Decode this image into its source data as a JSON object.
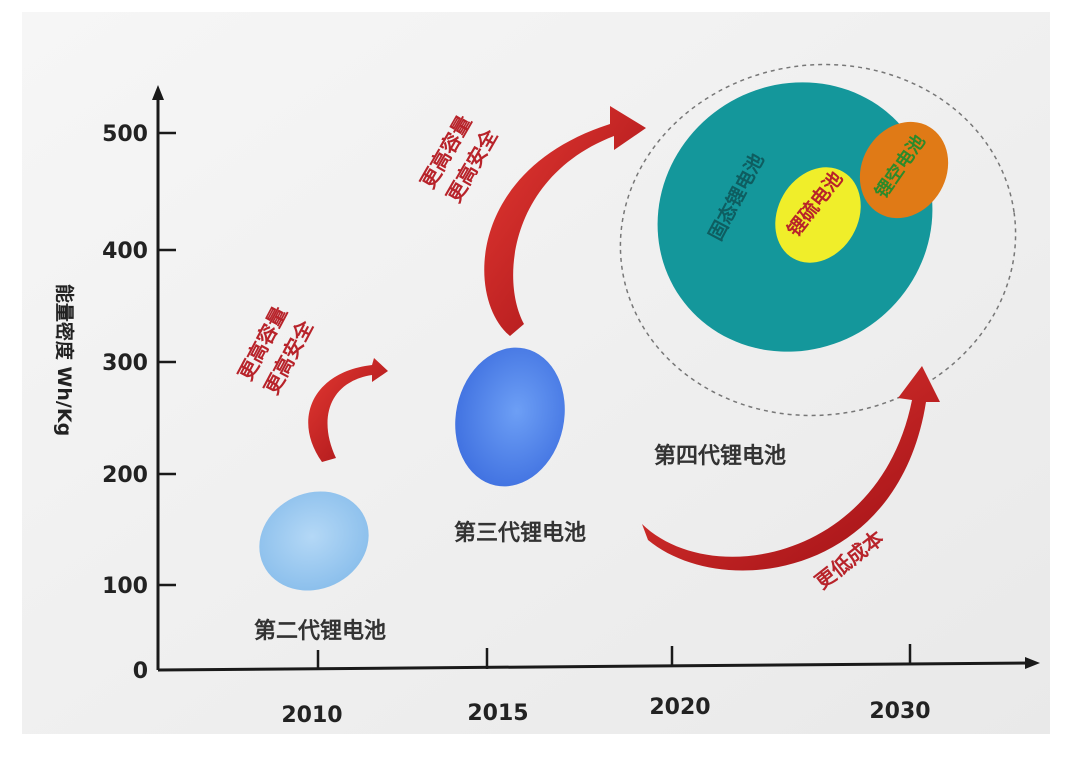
{
  "colors": {
    "background": "#f3f3f3",
    "axis": "#1a1a1a",
    "gen2": "#9ccaf2",
    "gen3": "#5b8ef0",
    "gen4": "#14979b",
    "lithium_sulfur": "#f0ee2a",
    "lithium_air": "#e07a16",
    "arrow_red": "#c8161c",
    "annotation_red": "#b8232a"
  },
  "y_axis": {
    "label": "能量密度 Wh/Kg",
    "ticks": [
      "0",
      "100",
      "200",
      "300",
      "400",
      "500"
    ]
  },
  "x_axis": {
    "ticks": [
      "2010",
      "2015",
      "2020",
      "2030"
    ]
  },
  "generations": {
    "gen2": "第二代锂电池",
    "gen3": "第三代锂电池",
    "gen4": "第四代锂电池"
  },
  "tech": {
    "solid_state": "固态锂电池",
    "lithium_sulfur": "锂硫电池",
    "lithium_air": "锂空电池"
  },
  "annotations": {
    "arrow1_line1": "更高容量",
    "arrow1_line2": "更高安全",
    "arrow2_line1": "更高容量",
    "arrow2_line2": "更高安全",
    "arrow3": "更低成本"
  }
}
